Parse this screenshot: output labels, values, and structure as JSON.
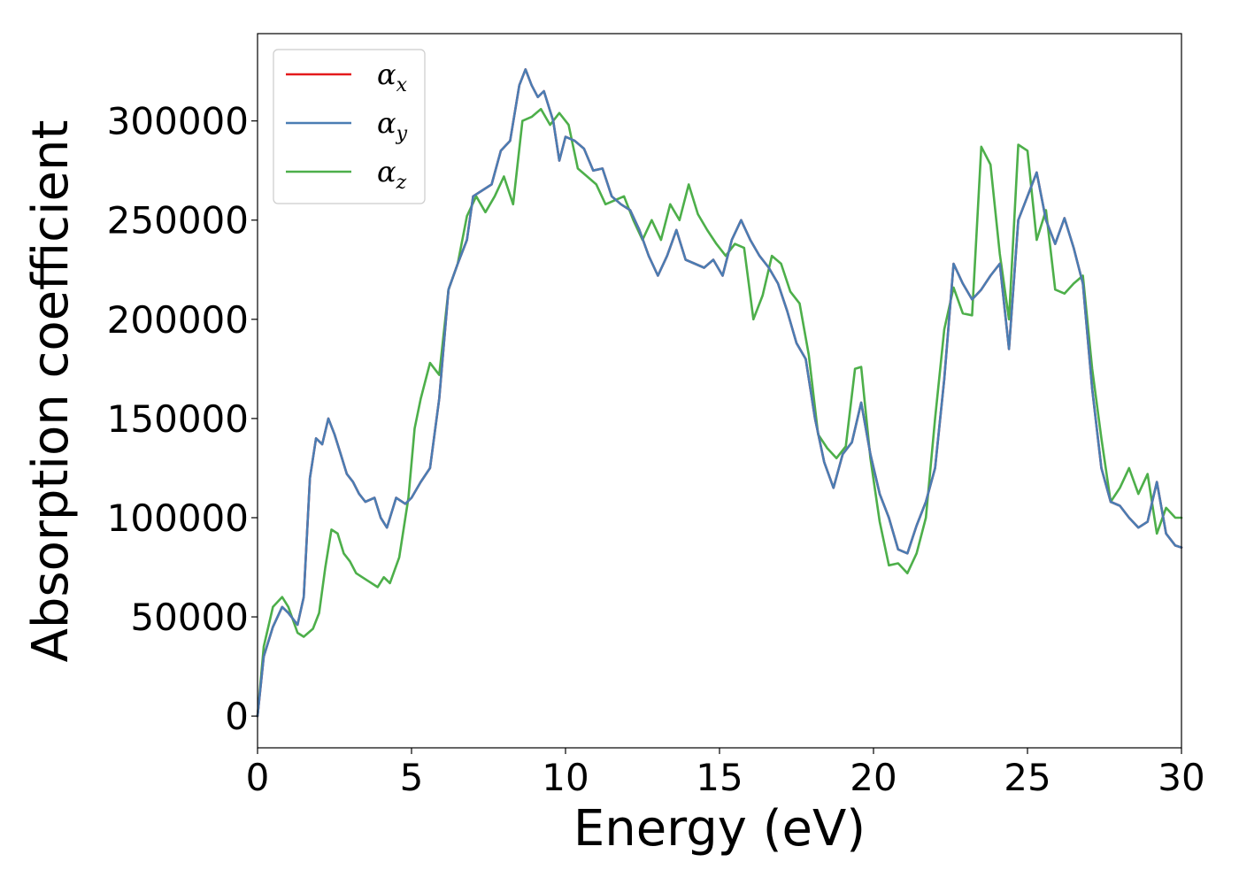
{
  "chart_data": {
    "type": "line",
    "xlabel": "Energy (eV)",
    "ylabel": "Absorption coefficient",
    "xlim": [
      0,
      30
    ],
    "ylim": [
      -16000,
      344000
    ],
    "xticks": [
      "0",
      "5",
      "10",
      "15",
      "20",
      "25",
      "30"
    ],
    "yticks": [
      "0",
      "50000",
      "100000",
      "150000",
      "200000",
      "250000",
      "300000"
    ],
    "grid": false,
    "legend_position": "top-left",
    "series": [
      {
        "name": "α",
        "subscript": "x",
        "color": "#e41a1c",
        "x": [
          0,
          0.2,
          0.5,
          0.8,
          1.0,
          1.3,
          1.5,
          1.7,
          1.9,
          2.1,
          2.3,
          2.5,
          2.7,
          2.9,
          3.1,
          3.3,
          3.5,
          3.8,
          4.0,
          4.2,
          4.5,
          4.8,
          5.0,
          5.3,
          5.6,
          5.9,
          6.2,
          6.5,
          6.8,
          7.0,
          7.3,
          7.6,
          7.9,
          8.2,
          8.5,
          8.7,
          8.9,
          9.1,
          9.3,
          9.6,
          9.8,
          10.0,
          10.3,
          10.6,
          10.9,
          11.2,
          11.5,
          11.8,
          12.1,
          12.4,
          12.7,
          13.0,
          13.3,
          13.6,
          13.9,
          14.2,
          14.5,
          14.8,
          15.1,
          15.4,
          15.7,
          16.0,
          16.3,
          16.6,
          16.9,
          17.2,
          17.5,
          17.8,
          18.1,
          18.4,
          18.7,
          19.0,
          19.3,
          19.6,
          19.9,
          20.2,
          20.5,
          20.8,
          21.1,
          21.4,
          21.7,
          22.0,
          22.3,
          22.6,
          22.9,
          23.2,
          23.5,
          23.8,
          24.1,
          24.4,
          24.7,
          25.0,
          25.3,
          25.6,
          25.9,
          26.2,
          26.5,
          26.8,
          27.1,
          27.4,
          27.7,
          28.0,
          28.3,
          28.6,
          28.9,
          29.2,
          29.5,
          29.8,
          30.0
        ],
        "y": [
          0,
          30000,
          45000,
          55000,
          52000,
          46000,
          60000,
          120000,
          140000,
          137000,
          150000,
          142000,
          132000,
          122000,
          118000,
          112000,
          108000,
          110000,
          100000,
          95000,
          110000,
          107000,
          110000,
          118000,
          125000,
          160000,
          215000,
          228000,
          240000,
          262000,
          265000,
          268000,
          285000,
          290000,
          318000,
          326000,
          318000,
          312000,
          315000,
          300000,
          280000,
          292000,
          290000,
          286000,
          275000,
          276000,
          262000,
          258000,
          255000,
          245000,
          232000,
          222000,
          232000,
          245000,
          230000,
          228000,
          226000,
          230000,
          222000,
          240000,
          250000,
          240000,
          232000,
          226000,
          218000,
          204000,
          188000,
          180000,
          150000,
          128000,
          115000,
          132000,
          138000,
          158000,
          132000,
          112000,
          100000,
          84000,
          82000,
          96000,
          108000,
          125000,
          170000,
          228000,
          218000,
          210000,
          215000,
          222000,
          228000,
          185000,
          250000,
          262000,
          274000,
          250000,
          238000,
          251000,
          236000,
          218000,
          165000,
          125000,
          108000,
          106000,
          100000,
          95000,
          98000,
          118000,
          92000,
          86000,
          85000
        ]
      },
      {
        "name": "α",
        "subscript": "y",
        "color": "#4a7db3",
        "x": [
          0,
          0.2,
          0.5,
          0.8,
          1.0,
          1.3,
          1.5,
          1.7,
          1.9,
          2.1,
          2.3,
          2.5,
          2.7,
          2.9,
          3.1,
          3.3,
          3.5,
          3.8,
          4.0,
          4.2,
          4.5,
          4.8,
          5.0,
          5.3,
          5.6,
          5.9,
          6.2,
          6.5,
          6.8,
          7.0,
          7.3,
          7.6,
          7.9,
          8.2,
          8.5,
          8.7,
          8.9,
          9.1,
          9.3,
          9.6,
          9.8,
          10.0,
          10.3,
          10.6,
          10.9,
          11.2,
          11.5,
          11.8,
          12.1,
          12.4,
          12.7,
          13.0,
          13.3,
          13.6,
          13.9,
          14.2,
          14.5,
          14.8,
          15.1,
          15.4,
          15.7,
          16.0,
          16.3,
          16.6,
          16.9,
          17.2,
          17.5,
          17.8,
          18.1,
          18.4,
          18.7,
          19.0,
          19.3,
          19.6,
          19.9,
          20.2,
          20.5,
          20.8,
          21.1,
          21.4,
          21.7,
          22.0,
          22.3,
          22.6,
          22.9,
          23.2,
          23.5,
          23.8,
          24.1,
          24.4,
          24.7,
          25.0,
          25.3,
          25.6,
          25.9,
          26.2,
          26.5,
          26.8,
          27.1,
          27.4,
          27.7,
          28.0,
          28.3,
          28.6,
          28.9,
          29.2,
          29.5,
          29.8,
          30.0
        ],
        "y": [
          0,
          30000,
          45000,
          55000,
          52000,
          46000,
          60000,
          120000,
          140000,
          137000,
          150000,
          142000,
          132000,
          122000,
          118000,
          112000,
          108000,
          110000,
          100000,
          95000,
          110000,
          107000,
          110000,
          118000,
          125000,
          160000,
          215000,
          228000,
          240000,
          262000,
          265000,
          268000,
          285000,
          290000,
          318000,
          326000,
          318000,
          312000,
          315000,
          300000,
          280000,
          292000,
          290000,
          286000,
          275000,
          276000,
          262000,
          258000,
          255000,
          245000,
          232000,
          222000,
          232000,
          245000,
          230000,
          228000,
          226000,
          230000,
          222000,
          240000,
          250000,
          240000,
          232000,
          226000,
          218000,
          204000,
          188000,
          180000,
          150000,
          128000,
          115000,
          132000,
          138000,
          158000,
          132000,
          112000,
          100000,
          84000,
          82000,
          96000,
          108000,
          125000,
          170000,
          228000,
          218000,
          210000,
          215000,
          222000,
          228000,
          185000,
          250000,
          262000,
          274000,
          250000,
          238000,
          251000,
          236000,
          218000,
          165000,
          125000,
          108000,
          106000,
          100000,
          95000,
          98000,
          118000,
          92000,
          86000,
          85000
        ]
      },
      {
        "name": "α",
        "subscript": "z",
        "color": "#4daf4a",
        "x": [
          0,
          0.2,
          0.5,
          0.8,
          1.0,
          1.3,
          1.5,
          1.8,
          2.0,
          2.2,
          2.4,
          2.6,
          2.8,
          3.0,
          3.2,
          3.4,
          3.6,
          3.9,
          4.1,
          4.3,
          4.6,
          4.9,
          5.1,
          5.3,
          5.6,
          5.9,
          6.2,
          6.5,
          6.8,
          7.1,
          7.4,
          7.7,
          8.0,
          8.3,
          8.6,
          8.9,
          9.2,
          9.5,
          9.8,
          10.1,
          10.4,
          10.7,
          11.0,
          11.3,
          11.6,
          11.9,
          12.2,
          12.5,
          12.8,
          13.1,
          13.4,
          13.7,
          14.0,
          14.3,
          14.6,
          14.9,
          15.2,
          15.5,
          15.8,
          16.1,
          16.4,
          16.7,
          17.0,
          17.3,
          17.6,
          17.9,
          18.2,
          18.5,
          18.8,
          19.1,
          19.4,
          19.6,
          19.9,
          20.2,
          20.5,
          20.8,
          21.1,
          21.4,
          21.7,
          22.0,
          22.3,
          22.6,
          22.9,
          23.2,
          23.5,
          23.8,
          24.1,
          24.4,
          24.7,
          25.0,
          25.3,
          25.6,
          25.9,
          26.2,
          26.5,
          26.8,
          27.1,
          27.4,
          27.7,
          28.0,
          28.3,
          28.6,
          28.9,
          29.2,
          29.5,
          29.8,
          30.0
        ],
        "y": [
          0,
          35000,
          55000,
          60000,
          55000,
          42000,
          40000,
          44000,
          52000,
          75000,
          94000,
          92000,
          82000,
          78000,
          72000,
          70000,
          68000,
          65000,
          70000,
          67000,
          80000,
          110000,
          145000,
          160000,
          178000,
          172000,
          215000,
          228000,
          252000,
          262000,
          254000,
          262000,
          272000,
          258000,
          300000,
          302000,
          306000,
          298000,
          304000,
          298000,
          276000,
          272000,
          268000,
          258000,
          260000,
          262000,
          250000,
          240000,
          250000,
          240000,
          258000,
          250000,
          268000,
          253000,
          245000,
          238000,
          232000,
          238000,
          236000,
          200000,
          212000,
          232000,
          228000,
          214000,
          208000,
          182000,
          142000,
          135000,
          130000,
          136000,
          175000,
          176000,
          130000,
          98000,
          76000,
          77000,
          72000,
          82000,
          100000,
          150000,
          195000,
          216000,
          203000,
          202000,
          287000,
          278000,
          233000,
          200000,
          288000,
          285000,
          240000,
          255000,
          215000,
          213000,
          218000,
          222000,
          175000,
          140000,
          108000,
          115000,
          125000,
          112000,
          122000,
          92000,
          105000,
          100000,
          100000
        ]
      }
    ]
  }
}
